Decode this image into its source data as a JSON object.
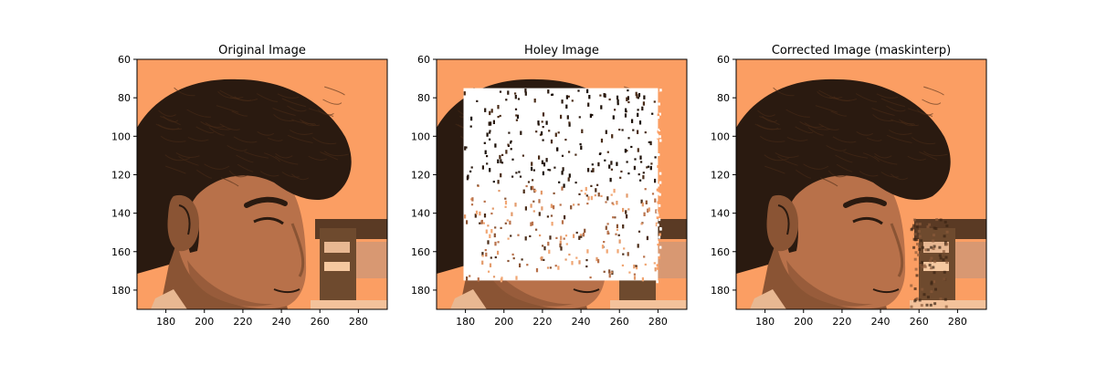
{
  "chart_data": [
    {
      "type": "image",
      "title": "Original Image",
      "xlim": [
        165,
        295
      ],
      "ylim": [
        190,
        60
      ],
      "xticks": [
        180,
        200,
        220,
        240,
        260,
        280
      ],
      "yticks": [
        60,
        80,
        100,
        120,
        140,
        160,
        180
      ],
      "mask_region": null
    },
    {
      "type": "image",
      "title": "Holey Image",
      "xlim": [
        165,
        295
      ],
      "ylim": [
        190,
        60
      ],
      "xticks": [
        180,
        200,
        220,
        240,
        260,
        280
      ],
      "yticks": [
        60,
        80,
        100,
        120,
        140,
        160,
        180
      ],
      "mask_region": {
        "x": [
          179,
          280
        ],
        "y": [
          75,
          175
        ]
      }
    },
    {
      "type": "image",
      "title": "Corrected Image (maskinterp)",
      "xlim": [
        165,
        295
      ],
      "ylim": [
        190,
        60
      ],
      "xticks": [
        180,
        200,
        220,
        240,
        260,
        280
      ],
      "yticks": [
        60,
        80,
        100,
        120,
        140,
        160,
        180
      ],
      "mask_region": null
    }
  ],
  "colors": {
    "background": "#FB9E63",
    "hair": "#2A1A10",
    "skin": "#B8714A",
    "skin_shadow": "#8A5434",
    "mask": "#FFFFFF"
  }
}
